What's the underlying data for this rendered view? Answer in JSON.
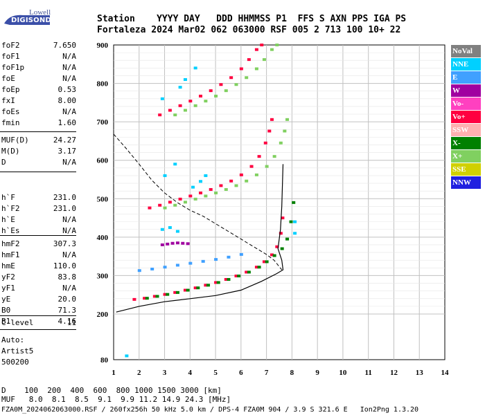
{
  "logo": {
    "line1": "Lowell",
    "line2": "DIGISONDE"
  },
  "header": {
    "line1": "Station    YYYY DAY   DDD HHMMSS P1  FFS S AXN PPS IGA PS",
    "line2": "Fortaleza 2024 Mar02 062 063000 RSF 005 2 713 100 10+ 22"
  },
  "params_group1": [
    {
      "name": "foF2",
      "value": "7.650"
    },
    {
      "name": "foF1",
      "value": "N/A"
    },
    {
      "name": "foF1p",
      "value": "N/A"
    },
    {
      "name": "foE",
      "value": "N/A"
    },
    {
      "name": "foEp",
      "value": "0.53"
    },
    {
      "name": "fxI",
      "value": "8.00"
    },
    {
      "name": "foEs",
      "value": "N/A"
    },
    {
      "name": "fmin",
      "value": "1.60"
    }
  ],
  "params_group2": [
    {
      "name": "MUF(D)",
      "value": "24.27"
    },
    {
      "name": "M(D)",
      "value": "3.17"
    },
    {
      "name": "D",
      "value": "N/A"
    }
  ],
  "params_group3": [
    {
      "name": "h`F",
      "value": "231.0"
    },
    {
      "name": "h`F2",
      "value": "231.0"
    },
    {
      "name": "h`E",
      "value": "N/A"
    },
    {
      "name": "h`Es",
      "value": "N/A"
    }
  ],
  "params_group4": [
    {
      "name": "hmF2",
      "value": "307.3"
    },
    {
      "name": "hmF1",
      "value": "N/A"
    },
    {
      "name": "hmE",
      "value": "110.0"
    },
    {
      "name": "yF2",
      "value": "83.8"
    },
    {
      "name": "yF1",
      "value": "N/A"
    },
    {
      "name": "yE",
      "value": "20.0"
    },
    {
      "name": "B0",
      "value": "71.3"
    },
    {
      "name": "B1",
      "value": "4.16"
    }
  ],
  "params_group5": [
    {
      "name": "C-level",
      "value": "11"
    }
  ],
  "auto": {
    "line1": "Auto:",
    "line2": "Artist5",
    "line3": "500200"
  },
  "bottom": {
    "line1": "D    100  200  400  600  800 1000 1500 3000 [km]",
    "line2": "MUF   8.0  8.1  8.5  9.1  9.9 11.2 14.9 24.3 [MHz]",
    "line3": "FZA0M_2024062063000.RSF / 260fx256h 50 kHz 5.0 km / DPS-4 FZA0M 904 / 3.9 S 321.6 E   Ion2Png 1.3.20"
  },
  "legend": [
    {
      "label": "NoVal",
      "bg": "#808080",
      "fg": "#ffffff"
    },
    {
      "label": "NNE",
      "bg": "#00d0ff",
      "fg": "#ffffff"
    },
    {
      "label": "E",
      "bg": "#40a0ff",
      "fg": "#ffffff"
    },
    {
      "label": "W",
      "bg": "#a000a0",
      "fg": "#ffffff"
    },
    {
      "label": "Vo-",
      "bg": "#ff40c0",
      "fg": "#ffffff"
    },
    {
      "label": "Vo+",
      "bg": "#ff0040",
      "fg": "#ffffff"
    },
    {
      "label": "SSW",
      "bg": "#ffb0b0",
      "fg": "#ffffff"
    },
    {
      "label": "X-",
      "bg": "#008000",
      "fg": "#ffffff"
    },
    {
      "label": "X+",
      "bg": "#80d060",
      "fg": "#ffffff"
    },
    {
      "label": "SSE",
      "bg": "#d0d000",
      "fg": "#ffffff"
    },
    {
      "label": "NNW",
      "bg": "#2020e0",
      "fg": "#ffffff"
    }
  ],
  "chart_data": {
    "type": "scatter",
    "xlim": [
      1,
      14
    ],
    "ylim": [
      80,
      900
    ],
    "xticks": [
      1,
      2,
      3,
      4,
      5,
      6,
      7,
      8,
      9,
      10,
      11,
      12,
      13,
      14
    ],
    "yticks": [
      80,
      200,
      300,
      400,
      500,
      600,
      700,
      800,
      900
    ],
    "grid": true,
    "traces": [
      {
        "name": "Vo+",
        "color": "#ff0040",
        "points": [
          [
            1.8,
            238
          ],
          [
            2.2,
            241
          ],
          [
            2.6,
            246
          ],
          [
            3.0,
            251
          ],
          [
            3.4,
            256
          ],
          [
            3.8,
            262
          ],
          [
            4.2,
            268
          ],
          [
            4.6,
            275
          ],
          [
            5.0,
            282
          ],
          [
            5.4,
            290
          ],
          [
            5.8,
            299
          ],
          [
            6.2,
            309
          ],
          [
            6.6,
            322
          ],
          [
            6.9,
            336
          ],
          [
            7.2,
            354
          ],
          [
            7.4,
            375
          ],
          [
            7.55,
            410
          ],
          [
            7.62,
            450
          ]
        ]
      },
      {
        "name": "X-",
        "color": "#008000",
        "points": [
          [
            2.3,
            241
          ],
          [
            2.7,
            246
          ],
          [
            3.1,
            251
          ],
          [
            3.5,
            256
          ],
          [
            3.9,
            262
          ],
          [
            4.3,
            268
          ],
          [
            4.7,
            275
          ],
          [
            5.1,
            282
          ],
          [
            5.5,
            290
          ],
          [
            5.9,
            299
          ],
          [
            6.3,
            309
          ],
          [
            6.7,
            322
          ],
          [
            7.0,
            336
          ],
          [
            7.3,
            352
          ],
          [
            7.6,
            370
          ],
          [
            7.8,
            395
          ],
          [
            7.95,
            440
          ],
          [
            8.05,
            490
          ]
        ]
      },
      {
        "name": "E",
        "color": "#40a0ff",
        "points": [
          [
            2.0,
            313
          ],
          [
            2.5,
            317
          ],
          [
            3.0,
            322
          ],
          [
            3.5,
            327
          ],
          [
            4.0,
            332
          ],
          [
            4.5,
            337
          ],
          [
            5.0,
            342
          ],
          [
            5.5,
            348
          ],
          [
            6.0,
            355
          ]
        ]
      },
      {
        "name": "Vo+",
        "color": "#ff0040",
        "points": [
          [
            2.4,
            476
          ],
          [
            2.8,
            483
          ],
          [
            3.2,
            491
          ],
          [
            3.6,
            499
          ],
          [
            4.0,
            507
          ],
          [
            4.4,
            515
          ],
          [
            4.8,
            524
          ],
          [
            5.2,
            534
          ],
          [
            5.6,
            546
          ],
          [
            6.0,
            562
          ],
          [
            6.4,
            584
          ],
          [
            6.7,
            610
          ],
          [
            6.95,
            645
          ],
          [
            7.1,
            676
          ],
          [
            7.2,
            706
          ]
        ]
      },
      {
        "name": "X+",
        "color": "#80d060",
        "points": [
          [
            3.0,
            476
          ],
          [
            3.4,
            483
          ],
          [
            3.8,
            491
          ],
          [
            4.2,
            499
          ],
          [
            4.6,
            507
          ],
          [
            5.0,
            515
          ],
          [
            5.4,
            524
          ],
          [
            5.8,
            534
          ],
          [
            6.2,
            546
          ],
          [
            6.6,
            562
          ],
          [
            7.0,
            584
          ],
          [
            7.3,
            610
          ],
          [
            7.55,
            645
          ],
          [
            7.7,
            676
          ],
          [
            7.8,
            706
          ]
        ]
      },
      {
        "name": "Vo+",
        "color": "#ff0040",
        "points": [
          [
            2.8,
            718
          ],
          [
            3.2,
            730
          ],
          [
            3.6,
            742
          ],
          [
            4.0,
            754
          ],
          [
            4.4,
            767
          ],
          [
            4.8,
            781
          ],
          [
            5.2,
            797
          ],
          [
            5.6,
            815
          ],
          [
            6.0,
            838
          ],
          [
            6.3,
            862
          ],
          [
            6.6,
            888
          ],
          [
            6.8,
            900
          ]
        ]
      },
      {
        "name": "X+",
        "color": "#80d060",
        "points": [
          [
            3.4,
            718
          ],
          [
            3.8,
            730
          ],
          [
            4.2,
            742
          ],
          [
            4.6,
            754
          ],
          [
            5.0,
            767
          ],
          [
            5.4,
            781
          ],
          [
            5.8,
            797
          ],
          [
            6.2,
            815
          ],
          [
            6.6,
            838
          ],
          [
            6.9,
            862
          ],
          [
            7.2,
            888
          ],
          [
            7.4,
            900
          ]
        ]
      },
      {
        "name": "W",
        "color": "#a000a0",
        "points": [
          [
            2.9,
            380
          ],
          [
            3.1,
            382
          ],
          [
            3.3,
            384
          ],
          [
            3.5,
            385
          ],
          [
            3.7,
            384
          ],
          [
            3.9,
            383
          ]
        ]
      },
      {
        "name": "NNE",
        "color": "#00d0ff",
        "points": [
          [
            1.5,
            90
          ],
          [
            2.9,
            420
          ],
          [
            3.2,
            425
          ],
          [
            3.5,
            415
          ],
          [
            3.0,
            560
          ],
          [
            3.4,
            590
          ],
          [
            2.9,
            760
          ],
          [
            3.6,
            790
          ],
          [
            3.8,
            810
          ],
          [
            4.2,
            840
          ],
          [
            4.6,
            560
          ],
          [
            4.1,
            530
          ],
          [
            4.4,
            545
          ],
          [
            8.1,
            440
          ],
          [
            8.1,
            410
          ]
        ]
      }
    ],
    "profile_curve": [
      [
        1.1,
        205
      ],
      [
        2.0,
        220
      ],
      [
        3.0,
        232
      ],
      [
        4.0,
        240
      ],
      [
        5.0,
        248
      ],
      [
        6.0,
        262
      ],
      [
        6.8,
        285
      ],
      [
        7.4,
        305
      ],
      [
        7.65,
        315
      ],
      [
        7.6,
        340
      ],
      [
        7.45,
        370
      ],
      [
        7.55,
        420
      ],
      [
        7.6,
        480
      ],
      [
        7.65,
        590
      ]
    ],
    "muf_curve": [
      [
        1.0,
        668
      ],
      [
        1.5,
        630
      ],
      [
        2.0,
        590
      ],
      [
        2.5,
        548
      ],
      [
        3.0,
        515
      ],
      [
        3.5,
        490
      ],
      [
        4.0,
        470
      ],
      [
        4.5,
        455
      ],
      [
        5.0,
        435
      ],
      [
        5.5,
        415
      ],
      [
        6.0,
        395
      ],
      [
        6.5,
        375
      ],
      [
        7.0,
        355
      ],
      [
        7.3,
        340
      ],
      [
        7.6,
        315
      ]
    ]
  }
}
